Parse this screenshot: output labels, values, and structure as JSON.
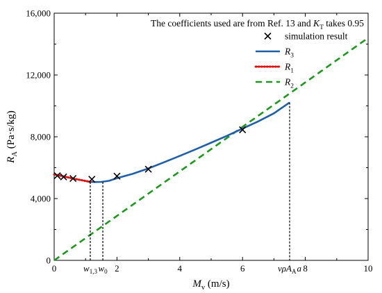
{
  "chart_data": {
    "type": "line",
    "note": {
      "prefix": "The coefficients used  are from Ref. 13 and ",
      "k_symbol": "K",
      "k_sub": "T",
      "suffix": " takes 0.95"
    },
    "xlabel": {
      "main": "M",
      "sub": "v",
      "unit": " (m/s)"
    },
    "ylabel": {
      "main": "R",
      "sub": "A",
      "unit": " (Pa·s/kg)"
    },
    "xlim": [
      0,
      10
    ],
    "ylim": [
      0,
      16000
    ],
    "x_ticks": [
      0,
      2,
      4,
      6,
      8,
      10
    ],
    "x_tick_labels": [
      "0",
      "2",
      "4",
      "6",
      "8",
      "10"
    ],
    "y_ticks": [
      0,
      4000,
      8000,
      12000,
      16000
    ],
    "y_tick_labels": [
      "0",
      "4,000",
      "8,000",
      "12,000",
      "16,000"
    ],
    "series": [
      {
        "name": "R1",
        "label_main": "R",
        "label_sub": "1",
        "style": "dotted",
        "color": "#dd1111",
        "x": [
          0.0,
          0.2,
          0.4,
          0.6,
          0.8,
          1.0,
          1.15
        ],
        "y": [
          5560,
          5480,
          5390,
          5300,
          5220,
          5140,
          5080
        ]
      },
      {
        "name": "R2",
        "label_main": "R",
        "label_sub": "2",
        "style": "dashed",
        "color": "#1a9a1a",
        "x": [
          0.0,
          10.0
        ],
        "y": [
          0,
          14400
        ]
      },
      {
        "name": "R3",
        "label_main": "R",
        "label_sub": "3",
        "style": "solid",
        "color": "#1f5fa8",
        "x": [
          1.15,
          1.3,
          1.5,
          1.75,
          2.0,
          2.5,
          3.0,
          3.5,
          4.0,
          4.5,
          5.0,
          5.5,
          6.0,
          6.5,
          7.0,
          7.5
        ],
        "y": [
          5080,
          5070,
          5080,
          5150,
          5320,
          5600,
          5950,
          6350,
          6760,
          7180,
          7620,
          8060,
          8530,
          9000,
          9520,
          10220
        ]
      },
      {
        "name": "simulation result",
        "label_main": "simulation result",
        "label_sub": "",
        "style": "markers",
        "marker": "x",
        "color": "#000000",
        "x": [
          0.1,
          0.3,
          0.6,
          1.2,
          2.0,
          3.0,
          6.0
        ],
        "y": [
          5480,
          5400,
          5300,
          5250,
          5450,
          5900,
          8450
        ]
      }
    ],
    "legend_order": [
      "simulation result",
      "R3",
      "R1",
      "R2"
    ],
    "legend_position": "top-right",
    "annotations": [
      {
        "main": "w",
        "sub": "1,3",
        "sup": "",
        "tail": "",
        "x": 1.15,
        "y_top": 5080
      },
      {
        "main": "w",
        "sub": "0",
        "sup": "",
        "tail": "",
        "x": 1.55,
        "y_top": 5080
      },
      {
        "main": "νρA",
        "sub": "A",
        "sup": "",
        "tail": "a",
        "x": 7.5,
        "y_top": 10220
      }
    ],
    "grid": false
  }
}
